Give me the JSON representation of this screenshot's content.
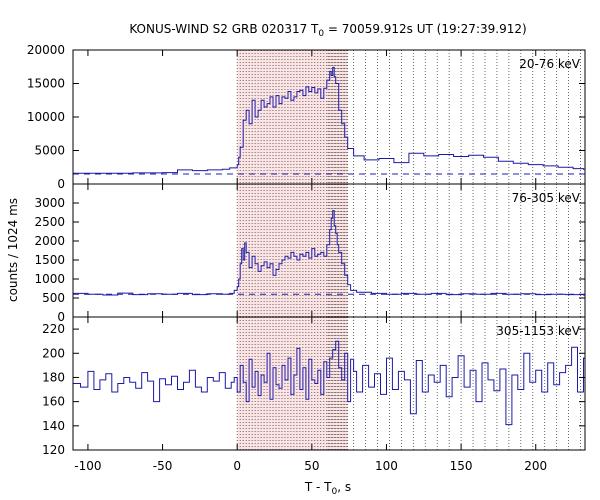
{
  "chart_data": {
    "type": "line",
    "title": {
      "prefix": "KONUS-WIND S2 GRB 020317 T",
      "sub": "0",
      "suffix": " = 70059.912s UT (19:27:39.912)"
    },
    "xlabel": {
      "prefix": "T - T",
      "sub": "0",
      "suffix": ", s"
    },
    "ylabel": "counts / 1024 ms",
    "xlim": [
      -110,
      233
    ],
    "x_ticks": [
      -100,
      -50,
      0,
      50,
      100,
      150,
      200
    ],
    "shaded_interval": [
      0,
      74
    ],
    "vertical_marker_lines": [
      0,
      2,
      4,
      6,
      8,
      10,
      12,
      14,
      16,
      18,
      20,
      22,
      24,
      26,
      28,
      30,
      32,
      34,
      36,
      38,
      40,
      42,
      44,
      46,
      48,
      50,
      52,
      54,
      56,
      58,
      60,
      61,
      62,
      63,
      64,
      65,
      66,
      67,
      68,
      69,
      70,
      71,
      72,
      73,
      74,
      78,
      86,
      94,
      102,
      110,
      118,
      126,
      134,
      142,
      150,
      158,
      166,
      174,
      182,
      190,
      198,
      206,
      214,
      222,
      230
    ],
    "panels": [
      {
        "label": "20-76 keV",
        "ylim": [
          0,
          20000
        ],
        "y_ticks": [
          0,
          5000,
          10000,
          15000,
          20000
        ],
        "background_level": 1500,
        "series": {
          "x": [
            -110,
            -90,
            -70,
            -50,
            -40,
            -30,
            -20,
            -10,
            -5,
            0,
            1,
            2,
            4,
            6,
            8,
            10,
            12,
            14,
            16,
            18,
            20,
            22,
            24,
            26,
            28,
            30,
            32,
            34,
            36,
            38,
            40,
            42,
            44,
            46,
            48,
            50,
            52,
            54,
            56,
            58,
            60,
            62,
            63,
            64,
            65,
            66,
            68,
            70,
            72,
            74,
            78,
            85,
            95,
            105,
            115,
            125,
            135,
            145,
            155,
            165,
            175,
            185,
            195,
            205,
            215,
            225,
            232
          ],
          "y": [
            1600,
            1600,
            1650,
            1700,
            2100,
            2000,
            2100,
            2200,
            2400,
            2900,
            4000,
            5500,
            9500,
            11000,
            9000,
            12500,
            10000,
            11000,
            12500,
            11500,
            12000,
            13000,
            11500,
            13200,
            12000,
            13000,
            12800,
            13800,
            12500,
            13000,
            13800,
            14000,
            13200,
            14500,
            13800,
            14400,
            13600,
            14200,
            12800,
            14300,
            15500,
            16800,
            16200,
            17400,
            16000,
            15000,
            11000,
            9000,
            7000,
            5300,
            4200,
            3600,
            3800,
            3200,
            4600,
            4200,
            4400,
            4100,
            4300,
            4000,
            3400,
            3100,
            2900,
            2700,
            2500,
            2300,
            2200
          ]
        }
      },
      {
        "label": "76-305 keV",
        "ylim": [
          0,
          3500
        ],
        "y_ticks": [
          0,
          500,
          1000,
          1500,
          2000,
          2500,
          3000
        ],
        "background_level": 600,
        "series": {
          "x": [
            -110,
            -100,
            -90,
            -80,
            -70,
            -60,
            -50,
            -40,
            -30,
            -20,
            -10,
            -5,
            -2,
            0,
            1,
            2,
            3,
            4,
            5,
            6,
            8,
            10,
            12,
            14,
            16,
            18,
            20,
            22,
            24,
            26,
            28,
            30,
            32,
            34,
            36,
            38,
            40,
            42,
            44,
            46,
            48,
            50,
            52,
            54,
            56,
            58,
            60,
            62,
            63,
            64,
            65,
            66,
            67,
            68,
            70,
            72,
            74,
            76,
            80,
            90,
            100,
            110,
            120,
            130,
            140,
            150,
            160,
            170,
            180,
            190,
            200,
            210,
            220,
            232
          ],
          "y": [
            620,
            600,
            580,
            630,
            590,
            610,
            600,
            620,
            590,
            610,
            600,
            620,
            700,
            800,
            1000,
            1400,
            1800,
            1500,
            1950,
            1700,
            1300,
            1600,
            1400,
            1200,
            1350,
            1450,
            1300,
            1400,
            1100,
            1250,
            1400,
            1500,
            1600,
            1550,
            1700,
            1600,
            1500,
            1650,
            1600,
            1700,
            1550,
            1800,
            1600,
            1650,
            1700,
            1600,
            1900,
            2300,
            2600,
            2800,
            2400,
            2200,
            1900,
            1700,
            1400,
            1100,
            850,
            700,
            650,
            620,
            600,
            620,
            600,
            620,
            590,
            610,
            600,
            620,
            600,
            610,
            590,
            600,
            590,
            580
          ]
        }
      },
      {
        "label": "305-1153 keV",
        "ylim": [
          120,
          230
        ],
        "y_ticks": [
          120,
          140,
          160,
          180,
          200,
          220
        ],
        "background_level": null,
        "series": {
          "x": [
            -110,
            -105,
            -100,
            -96,
            -92,
            -88,
            -84,
            -80,
            -76,
            -72,
            -68,
            -64,
            -60,
            -56,
            -52,
            -48,
            -44,
            -40,
            -36,
            -32,
            -28,
            -24,
            -20,
            -16,
            -12,
            -8,
            -4,
            -2,
            0,
            2,
            4,
            6,
            8,
            10,
            12,
            14,
            16,
            18,
            20,
            22,
            24,
            26,
            28,
            30,
            32,
            34,
            36,
            38,
            40,
            42,
            44,
            46,
            48,
            50,
            52,
            54,
            56,
            58,
            60,
            62,
            64,
            66,
            68,
            70,
            72,
            74,
            76,
            78,
            80,
            84,
            88,
            92,
            96,
            100,
            104,
            108,
            112,
            116,
            120,
            124,
            128,
            132,
            136,
            140,
            144,
            148,
            152,
            156,
            160,
            164,
            168,
            172,
            176,
            180,
            184,
            188,
            192,
            196,
            200,
            204,
            208,
            212,
            216,
            220,
            224,
            228,
            232
          ],
          "y": [
            175,
            172,
            185,
            170,
            178,
            183,
            168,
            175,
            180,
            176,
            171,
            184,
            177,
            160,
            179,
            174,
            181,
            170,
            176,
            186,
            172,
            168,
            180,
            177,
            184,
            171,
            176,
            180,
            168,
            190,
            176,
            160,
            195,
            172,
            185,
            165,
            182,
            176,
            200,
            162,
            188,
            174,
            171,
            190,
            178,
            196,
            166,
            182,
            204,
            170,
            188,
            162,
            195,
            178,
            175,
            186,
            166,
            193,
            180,
            196,
            203,
            210,
            188,
            178,
            200,
            160,
            195,
            185,
            168,
            190,
            172,
            183,
            166,
            196,
            170,
            185,
            178,
            150,
            194,
            168,
            182,
            176,
            190,
            164,
            180,
            198,
            172,
            186,
            160,
            192,
            178,
            169,
            187,
            141,
            182,
            170,
            200,
            176,
            186,
            168,
            192,
            174,
            184,
            190,
            205,
            168,
            196
          ]
        }
      }
    ]
  }
}
